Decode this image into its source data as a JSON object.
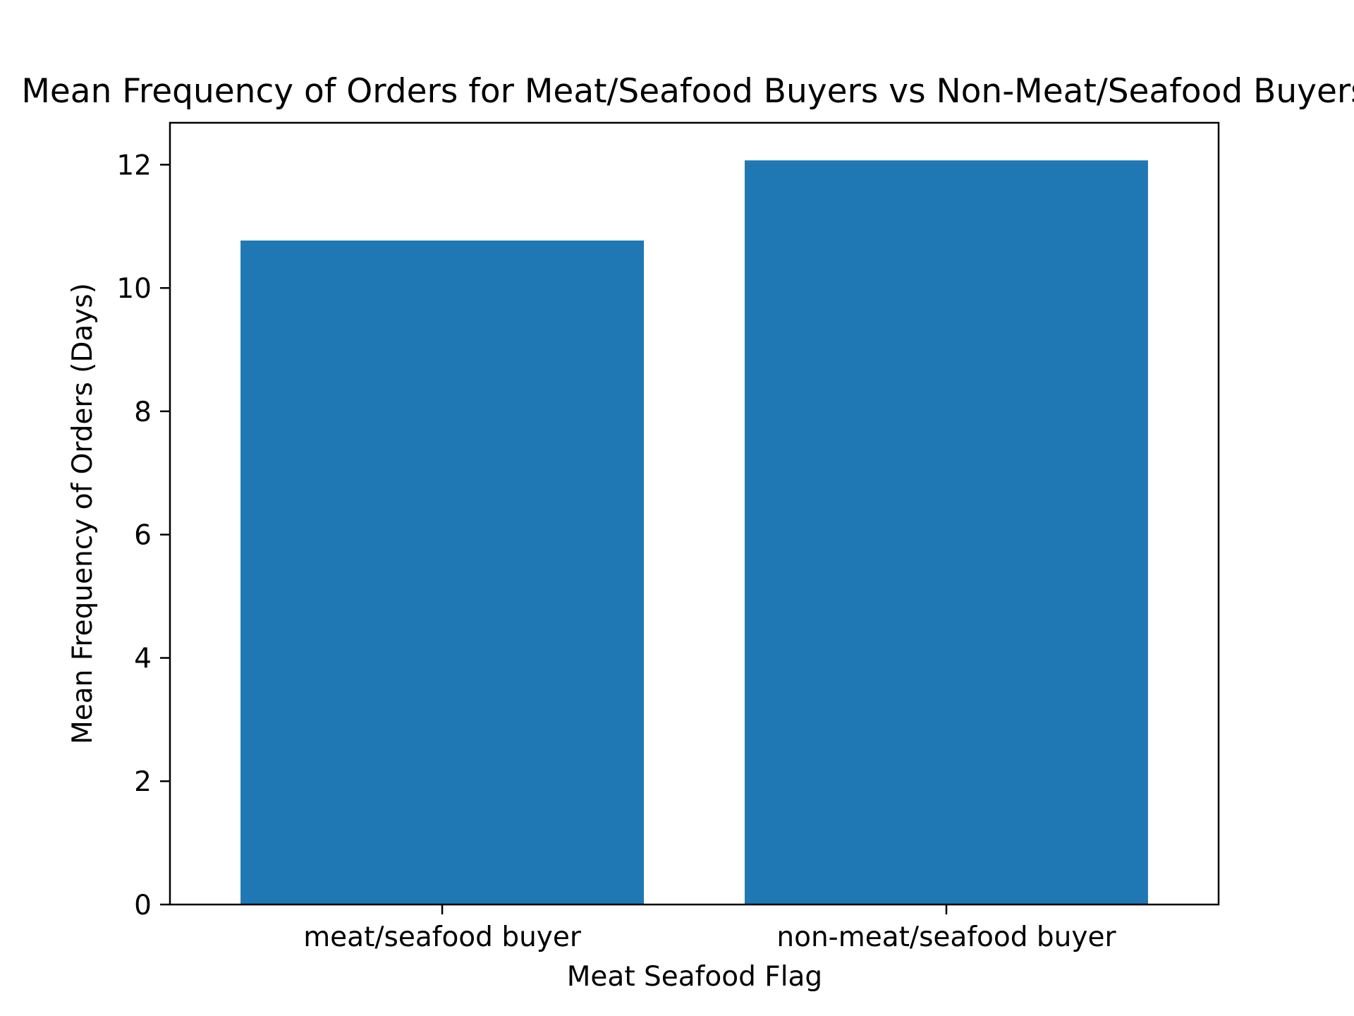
{
  "chart_data": {
    "type": "bar",
    "title": "Mean Frequency of Orders for Meat/Seafood Buyers vs Non-Meat/Seafood Buyers",
    "xlabel": "Meat Seafood Flag",
    "ylabel": "Mean Frequency of Orders (Days)",
    "categories": [
      "meat/seafood buyer",
      "non-meat/seafood buyer"
    ],
    "values": [
      10.77,
      12.07
    ],
    "ylim": [
      0,
      12.68
    ],
    "yticks": [
      0,
      2,
      4,
      6,
      8,
      10,
      12
    ],
    "grid": false,
    "bar_color": "#1f77b4"
  }
}
